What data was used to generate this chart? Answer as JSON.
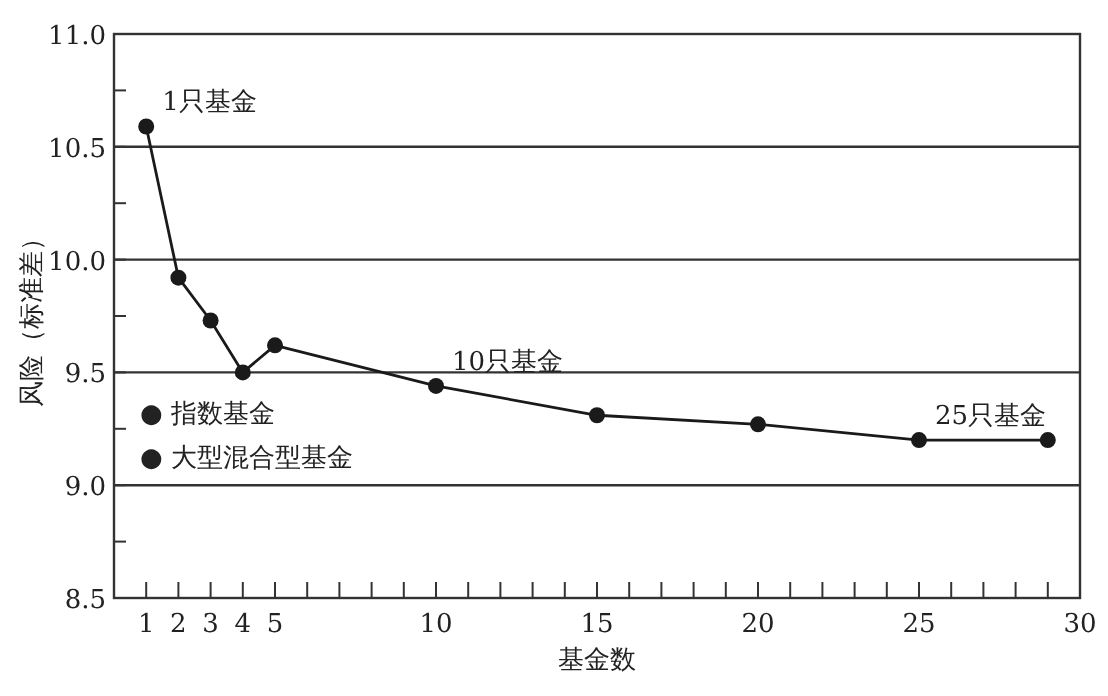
{
  "chart_data": {
    "type": "line",
    "xlabel": "基金数",
    "ylabel": "风险（标准差）",
    "x": [
      1,
      2,
      3,
      4,
      5,
      10,
      15,
      20,
      25,
      29
    ],
    "series": [
      {
        "color": "#1a1a1a",
        "values": [
          10.59,
          9.92,
          9.73,
          9.5,
          9.62,
          9.44,
          9.31,
          9.27,
          9.2,
          9.2
        ]
      }
    ],
    "xlim": [
      0,
      30
    ],
    "ylim": [
      8.5,
      11
    ],
    "xticks": [
      1,
      2,
      3,
      4,
      5,
      {
        "value": 6,
        "label": null
      },
      {
        "value": 7,
        "label": null
      },
      {
        "value": 8,
        "label": null
      },
      {
        "value": 9,
        "label": null
      },
      10,
      {
        "value": 11,
        "label": null
      },
      {
        "value": 12,
        "label": null
      },
      {
        "value": 13,
        "label": null
      },
      {
        "value": 14,
        "label": null
      },
      15,
      {
        "value": 16,
        "label": null
      },
      {
        "value": 17,
        "label": null
      },
      {
        "value": 18,
        "label": null
      },
      {
        "value": 19,
        "label": null
      },
      20,
      {
        "value": 21,
        "label": null
      },
      {
        "value": 22,
        "label": null
      },
      {
        "value": 23,
        "label": null
      },
      {
        "value": 24,
        "label": null
      },
      25,
      {
        "value": 26,
        "label": null
      },
      {
        "value": 27,
        "label": null
      },
      {
        "value": 28,
        "label": null
      },
      {
        "value": 29,
        "label": null
      },
      30
    ],
    "yticks": [
      {
        "value": 8.5,
        "label": "8.5"
      },
      {
        "value": 8.75,
        "label": null
      },
      {
        "value": 9,
        "label": "9.0"
      },
      {
        "value": 9.25,
        "label": null
      },
      {
        "value": 9.5,
        "label": "9.5"
      },
      {
        "value": 9.75,
        "label": null
      },
      {
        "value": 10,
        "label": "10.0"
      },
      {
        "value": 10.25,
        "label": null
      },
      {
        "value": 10.5,
        "label": "10.5"
      },
      {
        "value": 10.75,
        "label": null
      },
      {
        "value": 11,
        "label": "11.0"
      }
    ],
    "grid": "y",
    "marker": "circle",
    "line_style": "solid",
    "annotations": [
      {
        "text": "1只基金",
        "x": 1,
        "y": 10.59
      },
      {
        "text": "10只基金",
        "x": 10,
        "y": 9.44
      },
      {
        "text": "25只基金",
        "x": 25,
        "y": 9.2
      },
      "● 指数基金",
      "● 大型混合型基金"
    ]
  }
}
